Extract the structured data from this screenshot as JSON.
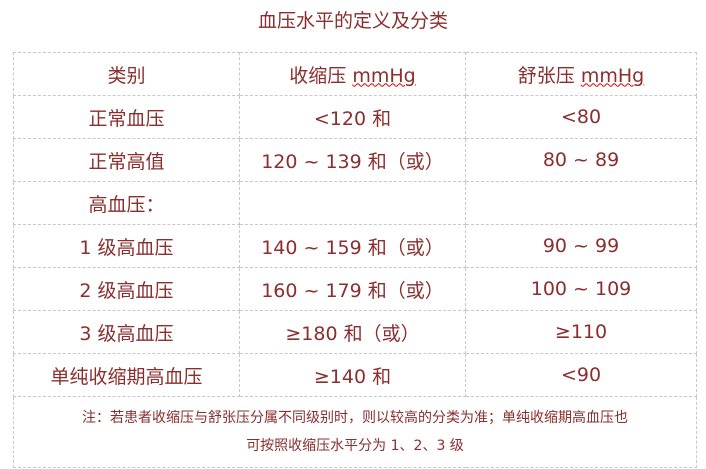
{
  "title": "血压水平的定义及分类",
  "headers": {
    "category": "类别",
    "systolic": "收缩压",
    "diastolic": "舒张压",
    "unit": "mmHg"
  },
  "rows": [
    {
      "category": "正常血压",
      "systolic": "<120 和",
      "diastolic": "<80"
    },
    {
      "category": "正常高值",
      "systolic": "120 ~ 139 和（或）",
      "diastolic": "80 ~ 89"
    },
    {
      "category": "高血压：",
      "systolic": "",
      "diastolic": ""
    },
    {
      "category": "1 级高血压",
      "systolic": "140 ~ 159 和（或）",
      "diastolic": "90 ~ 99"
    },
    {
      "category": "2 级高血压",
      "systolic": "160 ~ 179 和（或）",
      "diastolic": "100 ~ 109"
    },
    {
      "category": "3 级高血压",
      "systolic": "≥180 和（或）",
      "diastolic": "≥110"
    },
    {
      "category": "单纯收缩期高血压",
      "systolic": "≥140 和",
      "diastolic": "<90"
    }
  ],
  "note_line1": "注：若患者收缩压与舒张压分属不同级别时，则以较高的分类为准；单纯收缩期高血压也",
  "note_line2": "可按照收缩压水平分为 1、2、3 级",
  "colors": {
    "text": "#8b2e2e",
    "border": "#c8c8c8"
  }
}
